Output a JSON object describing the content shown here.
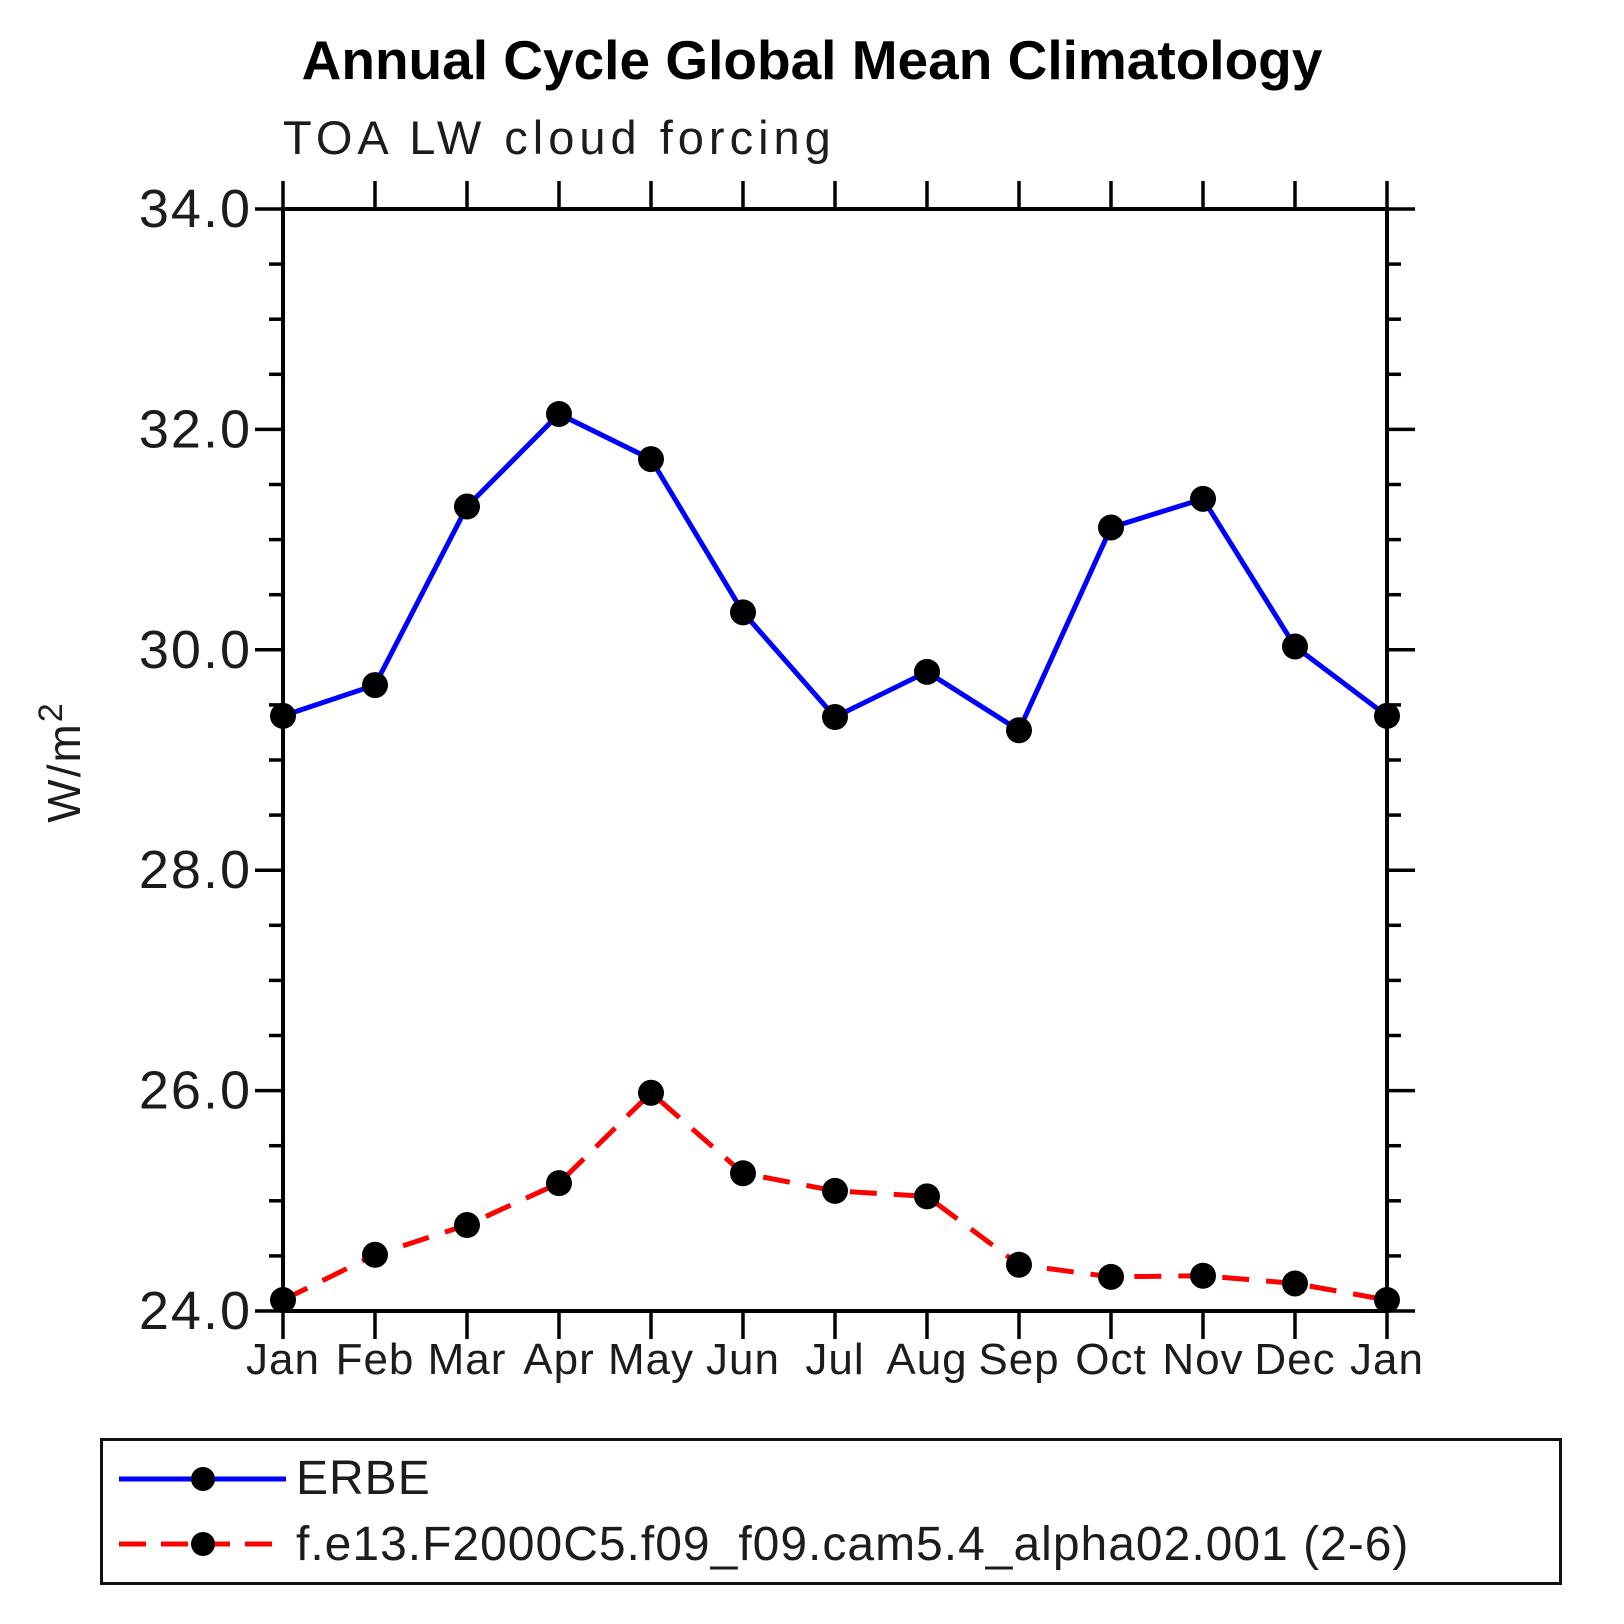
{
  "title": "Annual Cycle Global Mean Climatology",
  "subtitle": "TOA LW cloud forcing",
  "chart_data": {
    "type": "line",
    "x_categories": [
      "Jan",
      "Feb",
      "Mar",
      "Apr",
      "May",
      "Jun",
      "Jul",
      "Aug",
      "Sep",
      "Oct",
      "Nov",
      "Dec",
      "Jan"
    ],
    "xlabel": "",
    "ylabel": "W/m²",
    "ylim": [
      24.0,
      34.0
    ],
    "ytick_major_values": [
      34.0,
      32.0,
      30.0,
      28.0,
      26.0,
      24.0
    ],
    "ytick_major_labels": [
      "34.0",
      "32.0",
      "30.0",
      "28.0",
      "26.0",
      "24.0"
    ],
    "ytick_minor_step": 0.5,
    "grid": false,
    "legend_position": "bottom",
    "marker": "filled-circle",
    "marker_color": "#000000",
    "series": [
      {
        "name": "ERBE",
        "color": "#0000ff",
        "style": "solid",
        "values": [
          29.4,
          29.68,
          31.3,
          32.14,
          31.73,
          30.34,
          29.39,
          29.8,
          29.27,
          31.11,
          31.37,
          30.03,
          29.4
        ]
      },
      {
        "name": "f.e13.F2000C5.f09_f09.cam5.4_alpha02.001 (2-6)",
        "color": "#ff0000",
        "style": "dashed",
        "values": [
          24.1,
          24.51,
          24.78,
          25.16,
          25.98,
          25.25,
          25.09,
          25.04,
          24.42,
          24.31,
          24.32,
          24.25,
          24.1
        ]
      }
    ]
  }
}
